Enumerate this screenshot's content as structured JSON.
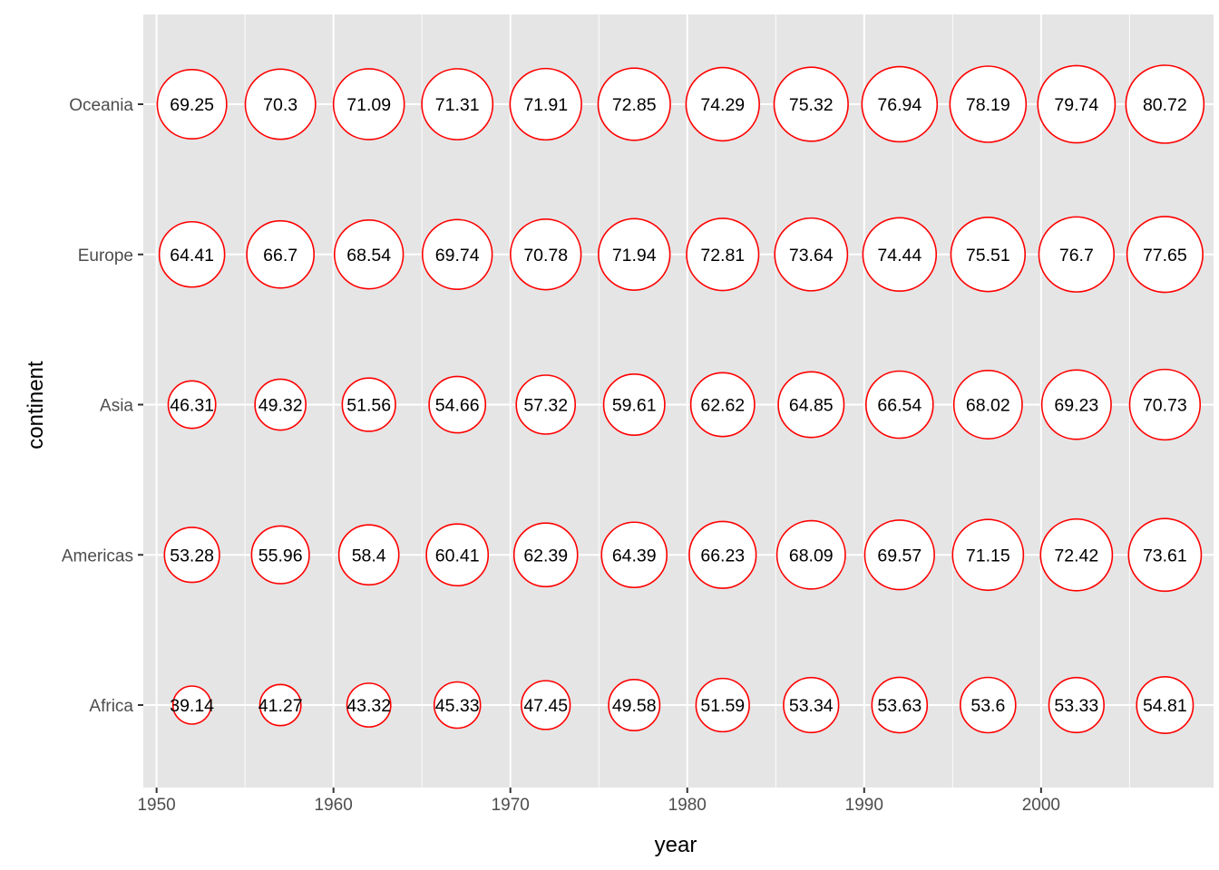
{
  "chart_data": {
    "type": "scatter",
    "title": "",
    "xlabel": "year",
    "ylabel": "continent",
    "x_ticks": [
      1950,
      1960,
      1970,
      1980,
      1990,
      2000
    ],
    "xlim": [
      1949.25,
      2009.75
    ],
    "categories": [
      "Africa",
      "Americas",
      "Asia",
      "Europe",
      "Oceania"
    ],
    "grid": true,
    "legend": "none",
    "colors": {
      "panel_background": "#e5e5e5",
      "grid_line": "#ffffff",
      "point_stroke": "#ff0000",
      "point_fill": "#ffffff",
      "tick_text": "#4d4d4d",
      "label_text": "#000000"
    },
    "x": [
      1952,
      1957,
      1962,
      1967,
      1972,
      1977,
      1982,
      1987,
      1992,
      1997,
      2002,
      2007
    ],
    "series": [
      {
        "category": "Africa",
        "labels": [
          "39.14",
          "41.27",
          "43.32",
          "45.33",
          "47.45",
          "49.58",
          "51.59",
          "53.34",
          "53.63",
          "53.6",
          "53.33",
          "54.81"
        ]
      },
      {
        "category": "Americas",
        "labels": [
          "53.28",
          "55.96",
          "58.4",
          "60.41",
          "62.39",
          "64.39",
          "66.23",
          "68.09",
          "69.57",
          "71.15",
          "72.42",
          "73.61"
        ]
      },
      {
        "category": "Asia",
        "labels": [
          "46.31",
          "49.32",
          "51.56",
          "54.66",
          "57.32",
          "59.61",
          "62.62",
          "64.85",
          "66.54",
          "68.02",
          "69.23",
          "70.73"
        ]
      },
      {
        "category": "Europe",
        "labels": [
          "64.41",
          "66.7",
          "68.54",
          "69.74",
          "70.78",
          "71.94",
          "72.81",
          "73.64",
          "74.44",
          "75.51",
          "76.7",
          "77.65"
        ]
      },
      {
        "category": "Oceania",
        "labels": [
          "69.25",
          "70.3",
          "71.09",
          "71.31",
          "71.91",
          "72.85",
          "74.29",
          "75.32",
          "76.94",
          "78.19",
          "79.74",
          "80.72"
        ]
      }
    ]
  }
}
